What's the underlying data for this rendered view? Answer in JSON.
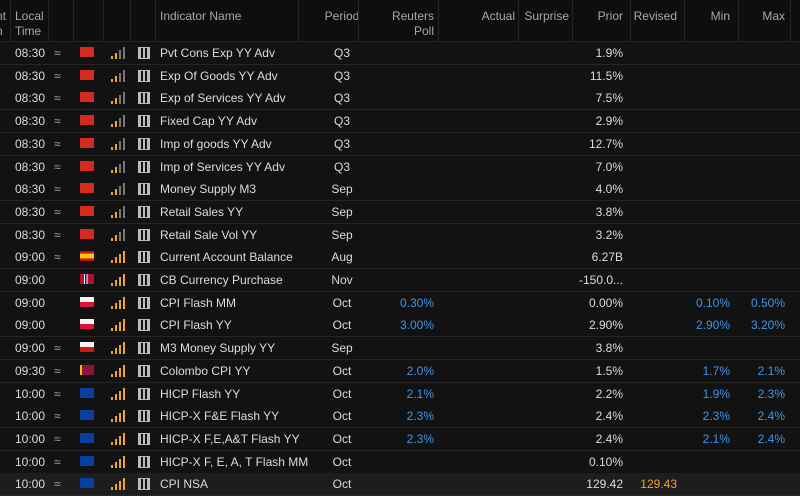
{
  "edge_header": [
    "nt",
    "n"
  ],
  "headers": {
    "local": "Local",
    "time": "Time",
    "name": "Indicator Name",
    "period": "Period",
    "poll1": "Reuters",
    "poll2": "Poll",
    "actual": "Actual",
    "surprise": "Surprise",
    "prior": "Prior",
    "revised": "Revised",
    "min": "Min",
    "max": "Max"
  },
  "rows": [
    {
      "time": "08:30",
      "approx": "≈",
      "name": "Pvt Cons Exp YY Adv",
      "period": "Q3",
      "prior": "1.9%"
    },
    {
      "time": "08:30",
      "approx": "≈",
      "name": "Exp Of Goods YY Adv",
      "period": "Q3",
      "prior": "11.5%"
    },
    {
      "time": "08:30",
      "approx": "≈",
      "name": "Exp of Services YY Adv",
      "period": "Q3",
      "prior": "7.5%"
    },
    {
      "time": "08:30",
      "approx": "≈",
      "name": "Fixed Cap YY Adv",
      "period": "Q3",
      "prior": "2.9%"
    },
    {
      "time": "08:30",
      "approx": "≈",
      "name": "Imp of goods YY Adv",
      "period": "Q3",
      "prior": "12.7%"
    },
    {
      "time": "08:30",
      "approx": "≈",
      "name": "Imp of Services YY Adv",
      "period": "Q3",
      "prior": "7.0%"
    },
    {
      "time": "08:30",
      "approx": "≈",
      "name": "Money Supply M3",
      "period": "Sep",
      "prior": "4.0%"
    },
    {
      "time": "08:30",
      "approx": "≈",
      "name": "Retail Sales YY",
      "period": "Sep",
      "prior": "3.8%"
    },
    {
      "time": "08:30",
      "approx": "≈",
      "name": "Retail Sale Vol YY",
      "period": "Sep",
      "prior": "3.2%"
    },
    {
      "time": "09:00",
      "approx": "≈",
      "name": "Current Account Balance",
      "period": "Aug",
      "prior": "6.27B"
    },
    {
      "time": "09:00",
      "name": "CB Currency Purchase",
      "period": "Nov",
      "prior": "-150.0..."
    },
    {
      "time": "09:00",
      "name": "CPI Flash MM",
      "period": "Oct",
      "poll": "0.30%",
      "prior": "0.00%",
      "min": "0.10%",
      "max": "0.50%"
    },
    {
      "time": "09:00",
      "name": "CPI Flash YY",
      "period": "Oct",
      "poll": "3.00%",
      "prior": "2.90%",
      "min": "2.90%",
      "max": "3.20%"
    },
    {
      "time": "09:00",
      "approx": "≈",
      "name": "M3 Money Supply YY",
      "period": "Sep",
      "prior": "3.8%"
    },
    {
      "time": "09:30",
      "approx": "≈",
      "name": "Colombo CPI YY",
      "period": "Oct",
      "poll": "2.0%",
      "prior": "1.5%",
      "min": "1.7%",
      "max": "2.1%"
    },
    {
      "time": "10:00",
      "approx": "≈",
      "name": "HICP Flash YY",
      "period": "Oct",
      "poll": "2.1%",
      "prior": "2.2%",
      "min": "1.9%",
      "max": "2.3%"
    },
    {
      "time": "10:00",
      "approx": "≈",
      "name": "HICP-X F&E Flash YY",
      "period": "Oct",
      "poll": "2.3%",
      "prior": "2.4%",
      "min": "2.3%",
      "max": "2.4%"
    },
    {
      "time": "10:00",
      "approx": "≈",
      "name": "HICP-X F,E,A&T Flash YY",
      "period": "Oct",
      "poll": "2.3%",
      "prior": "2.4%",
      "min": "2.1%",
      "max": "2.4%"
    },
    {
      "time": "10:00",
      "approx": "≈",
      "name": "HICP-X F, E, A, T Flash MM",
      "period": "Oct",
      "prior": "0.10%"
    },
    {
      "time": "10:00",
      "approx": "≈",
      "name": "CPI NSA",
      "period": "Oct",
      "prior": "129.42",
      "revised": "129.43"
    }
  ]
}
